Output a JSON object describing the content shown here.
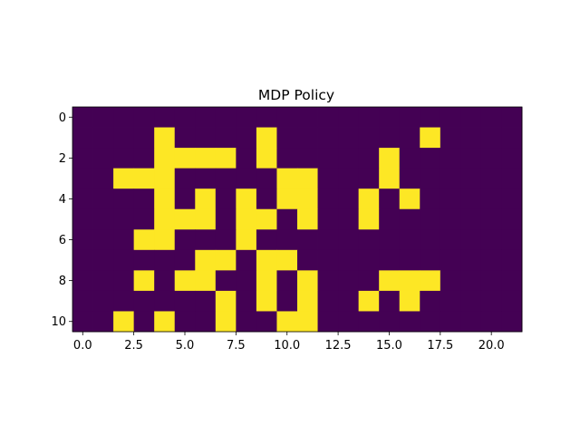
{
  "chart_data": {
    "type": "heatmap",
    "title": "MDP Policy",
    "xlabel": "",
    "ylabel": "",
    "rows": 11,
    "cols": 22,
    "xlim": [
      -0.5,
      21.5
    ],
    "ylim": [
      10.5,
      -0.5
    ],
    "x_ticks": [
      0,
      2.5,
      5,
      7.5,
      10,
      12.5,
      15,
      17.5,
      20
    ],
    "x_tick_labels": [
      "0.0",
      "2.5",
      "5.0",
      "7.5",
      "10.0",
      "12.5",
      "15.0",
      "17.5",
      "20.0"
    ],
    "y_ticks": [
      0,
      2,
      4,
      6,
      8,
      10
    ],
    "y_tick_labels": [
      "0",
      "2",
      "4",
      "6",
      "8",
      "10"
    ],
    "colors": {
      "low": "#440154",
      "high": "#fde725"
    },
    "grid": false,
    "values": [
      [
        0,
        0,
        0,
        0,
        0,
        0,
        0,
        0,
        0,
        0,
        0,
        0,
        0,
        0,
        0,
        0,
        0,
        0,
        0,
        0,
        0,
        0
      ],
      [
        0,
        0,
        0,
        0,
        1,
        0,
        0,
        0,
        0,
        1,
        0,
        0,
        0,
        0,
        0,
        0,
        0,
        1,
        0,
        0,
        0,
        0
      ],
      [
        0,
        0,
        0,
        0,
        1,
        1,
        1,
        1,
        0,
        1,
        0,
        0,
        0,
        0,
        0,
        1,
        0,
        0,
        0,
        0,
        0,
        0
      ],
      [
        0,
        0,
        1,
        1,
        1,
        0,
        0,
        0,
        0,
        0,
        1,
        1,
        0,
        0,
        0,
        1,
        0,
        0,
        0,
        0,
        0,
        0
      ],
      [
        0,
        0,
        0,
        0,
        1,
        0,
        1,
        0,
        1,
        0,
        1,
        1,
        0,
        0,
        1,
        0,
        1,
        0,
        0,
        0,
        0,
        0
      ],
      [
        0,
        0,
        0,
        0,
        1,
        1,
        1,
        0,
        1,
        1,
        0,
        1,
        0,
        0,
        1,
        0,
        0,
        0,
        0,
        0,
        0,
        0
      ],
      [
        0,
        0,
        0,
        1,
        1,
        0,
        0,
        0,
        1,
        0,
        0,
        0,
        0,
        0,
        0,
        0,
        0,
        0,
        0,
        0,
        0,
        0
      ],
      [
        0,
        0,
        0,
        0,
        0,
        0,
        1,
        1,
        0,
        1,
        1,
        0,
        0,
        0,
        0,
        0,
        0,
        0,
        0,
        0,
        0,
        0
      ],
      [
        0,
        0,
        0,
        1,
        0,
        1,
        1,
        0,
        0,
        1,
        0,
        1,
        0,
        0,
        0,
        1,
        1,
        1,
        0,
        0,
        0,
        0
      ],
      [
        0,
        0,
        0,
        0,
        0,
        0,
        0,
        1,
        0,
        1,
        0,
        1,
        0,
        0,
        1,
        0,
        1,
        0,
        0,
        0,
        0,
        0
      ],
      [
        0,
        0,
        1,
        0,
        1,
        0,
        0,
        1,
        0,
        0,
        1,
        1,
        0,
        0,
        0,
        0,
        0,
        0,
        0,
        0,
        0,
        0
      ]
    ]
  }
}
